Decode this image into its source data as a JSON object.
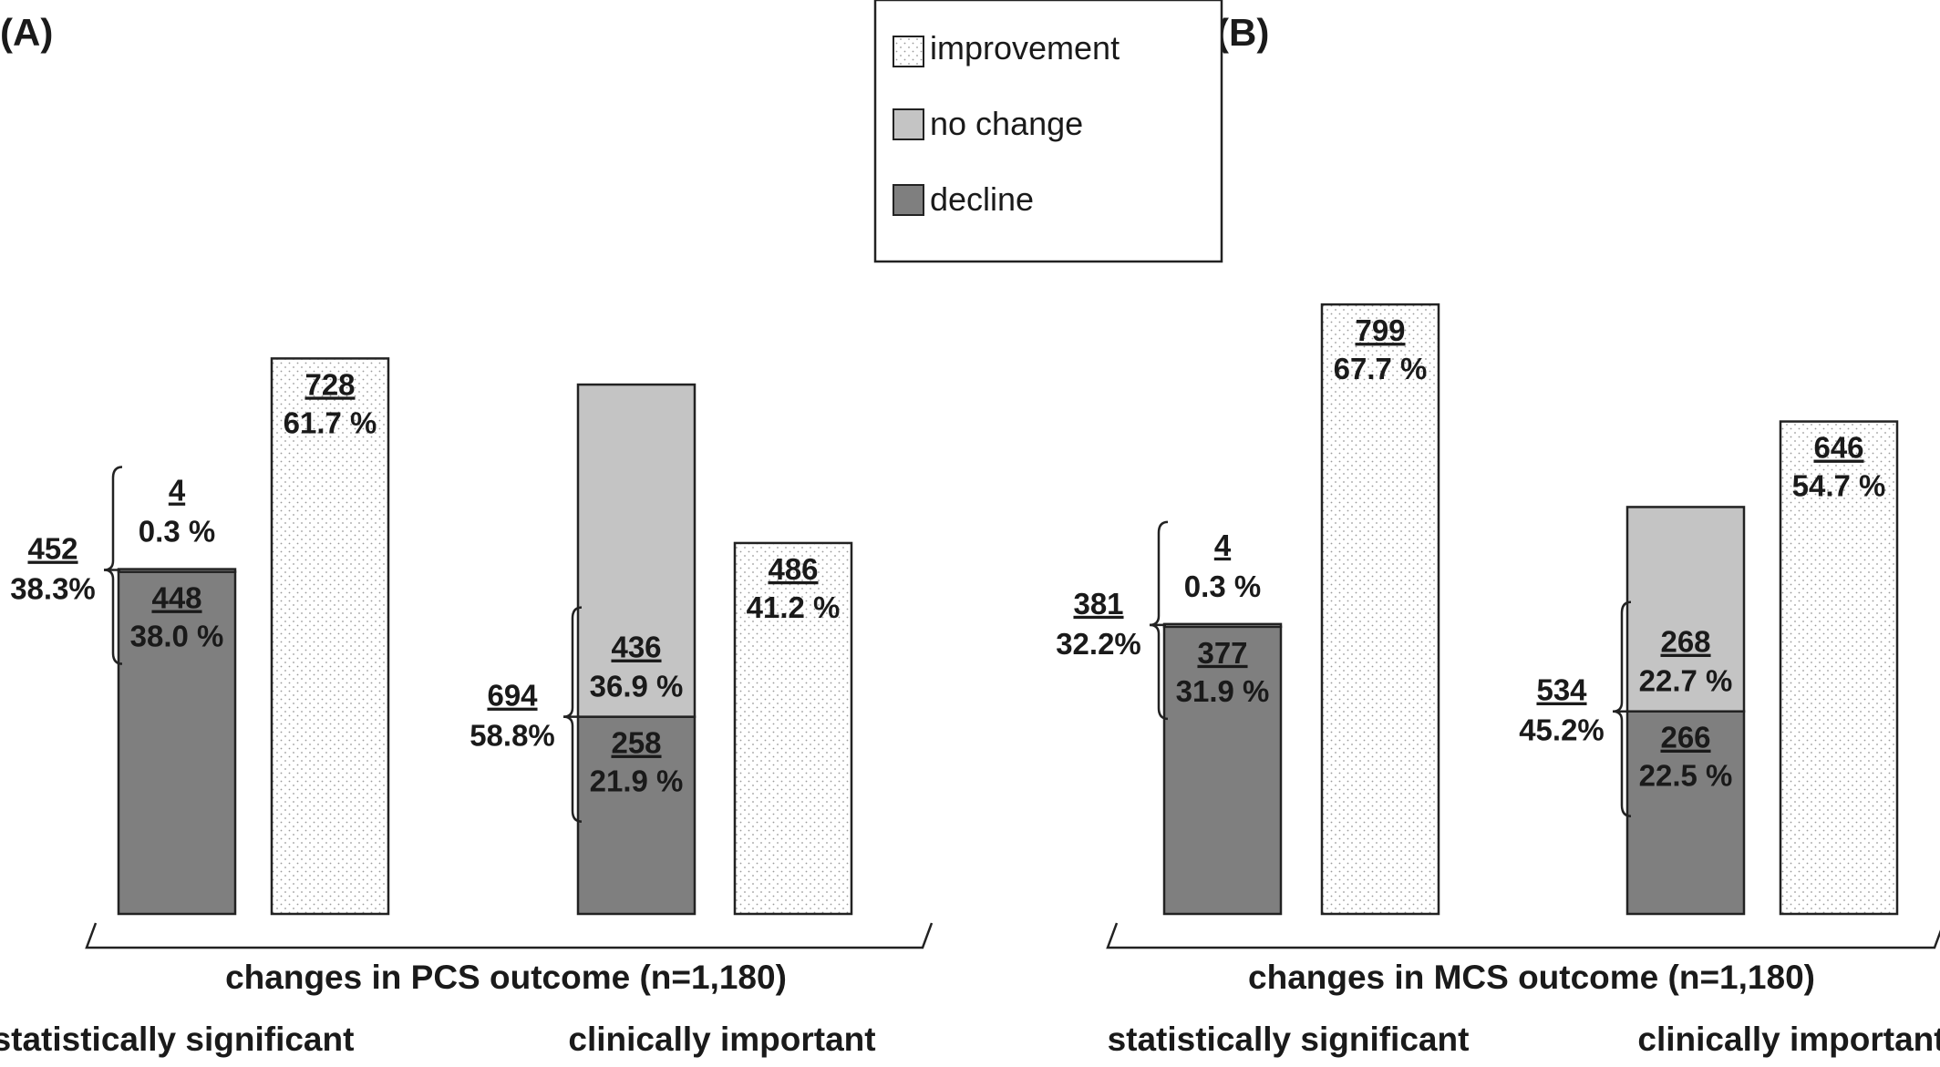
{
  "legend": {
    "improvement": "improvement",
    "no_change": "no change",
    "decline": "decline"
  },
  "colors": {
    "improvement": "#ffffff",
    "no_change": "#c4c4c4",
    "decline": "#7f7f7f"
  },
  "chart_data": [
    {
      "type": "bar",
      "title": "(A)",
      "xlabel": "changes in PCS outcome (n=1,180)",
      "ylim": [
        0,
        82
      ],
      "groups": [
        {
          "label": "statistically significant",
          "bars": [
            {
              "kind": "stacked",
              "segments": [
                {
                  "series": "decline",
                  "count": "448",
                  "percent": "38.0 %",
                  "value": 38.0
                },
                {
                  "series": "no change",
                  "count": "4",
                  "percent": "0.3 %",
                  "value": 0.3
                }
              ],
              "total": {
                "count": "452",
                "percent": "38.3%"
              }
            },
            {
              "kind": "single",
              "segments": [
                {
                  "series": "improvement",
                  "count": "728",
                  "percent": "61.7 %",
                  "value": 61.7
                }
              ]
            }
          ]
        },
        {
          "label": "clinically important",
          "bars": [
            {
              "kind": "stacked",
              "segments": [
                {
                  "series": "decline",
                  "count": "258",
                  "percent": "21.9 %",
                  "value": 21.9
                },
                {
                  "series": "no change",
                  "count": "436",
                  "percent": "36.9 %",
                  "value": 36.9
                }
              ],
              "total": {
                "count": "694",
                "percent": "58.8%"
              }
            },
            {
              "kind": "single",
              "segments": [
                {
                  "series": "improvement",
                  "count": "486",
                  "percent": "41.2 %",
                  "value": 41.2
                }
              ]
            }
          ]
        }
      ]
    },
    {
      "type": "bar",
      "title": "(B)",
      "xlabel": "changes in MCS outcome (n=1,180)",
      "ylim": [
        0,
        82
      ],
      "groups": [
        {
          "label": "statistically significant",
          "bars": [
            {
              "kind": "stacked",
              "segments": [
                {
                  "series": "decline",
                  "count": "377",
                  "percent": "31.9 %",
                  "value": 31.9
                },
                {
                  "series": "no change",
                  "count": "4",
                  "percent": "0.3 %",
                  "value": 0.3
                }
              ],
              "total": {
                "count": "381",
                "percent": "32.2%"
              }
            },
            {
              "kind": "single",
              "segments": [
                {
                  "series": "improvement",
                  "count": "799",
                  "percent": "67.7 %",
                  "value": 67.7
                }
              ]
            }
          ]
        },
        {
          "label": "clinically important",
          "bars": [
            {
              "kind": "stacked",
              "segments": [
                {
                  "series": "decline",
                  "count": "266",
                  "percent": "22.5 %",
                  "value": 22.5
                },
                {
                  "series": "no change",
                  "count": "268",
                  "percent": "22.7 %",
                  "value": 22.7
                }
              ],
              "total": {
                "count": "534",
                "percent": "45.2%"
              }
            },
            {
              "kind": "single",
              "segments": [
                {
                  "series": "improvement",
                  "count": "646",
                  "percent": "54.7 %",
                  "value": 54.7
                }
              ]
            }
          ]
        }
      ]
    }
  ]
}
